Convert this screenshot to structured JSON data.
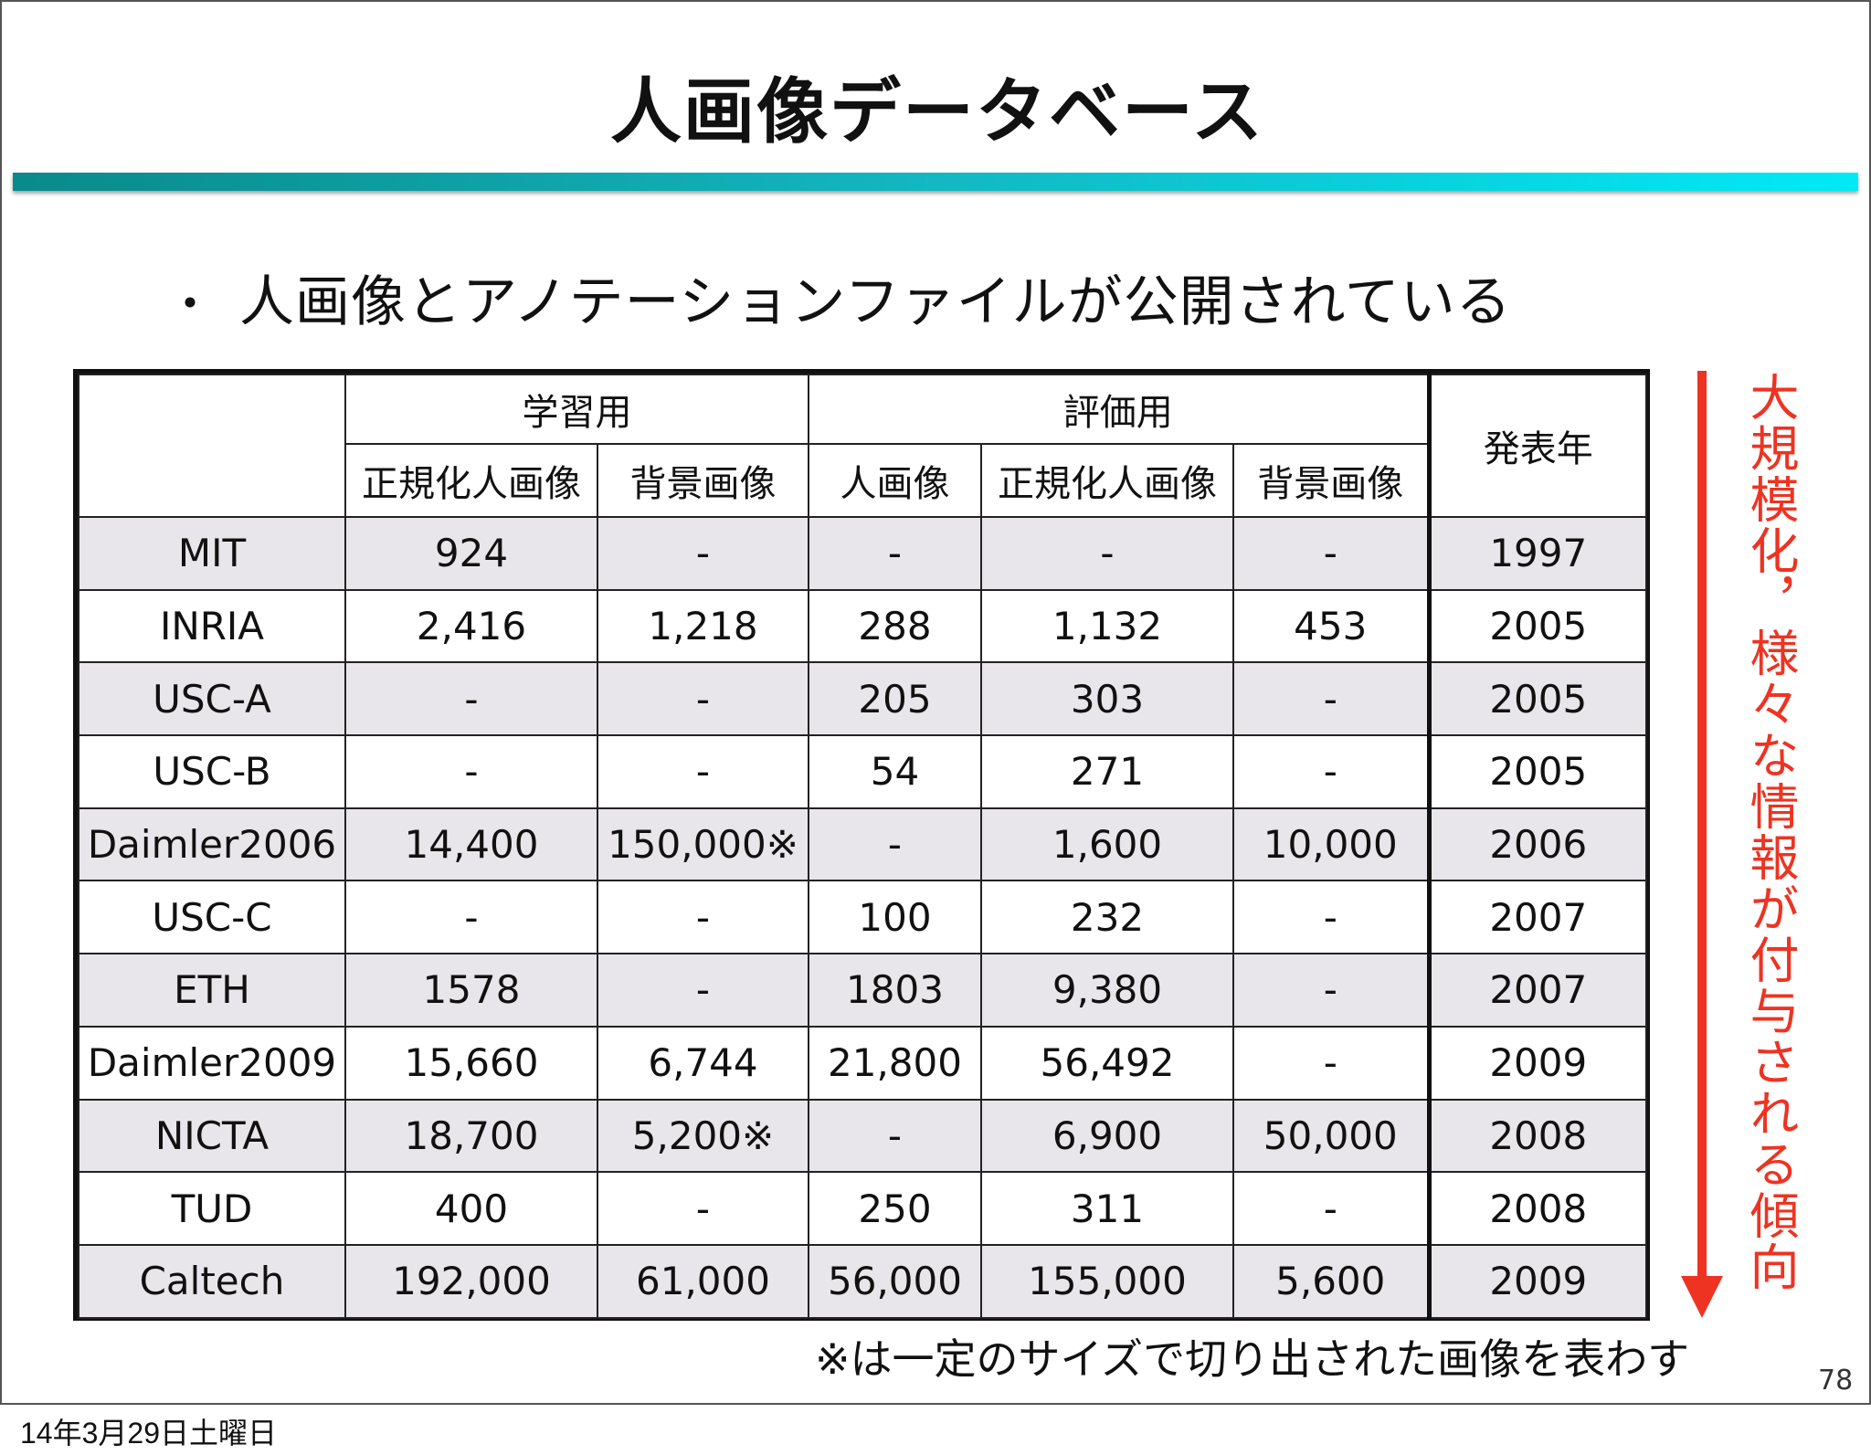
{
  "slide": {
    "title": "人画像データベース",
    "bullet_marker": "・",
    "bullet_text": "人画像とアノテーションファイルが公開されている",
    "side_label": "大規模化，様々な情報が付与される傾向",
    "note": "※は一定のサイズで切り出された画像を表わす",
    "page_number": "78",
    "footer_date": "14年3月29日土曜日",
    "colors": {
      "title_bar_start": "#0a8a8a",
      "title_bar_end": "#00eaf6",
      "accent_red": "#ee3322",
      "row_shade": "#e8e6ea"
    }
  },
  "table": {
    "group_headers": {
      "train": "学習用",
      "eval": "評価用",
      "year": "発表年"
    },
    "sub_headers": {
      "train_norm": "正規化人画像",
      "train_bg": "背景画像",
      "eval_person": "人画像",
      "eval_norm": "正規化人画像",
      "eval_bg": "背景画像"
    },
    "rows": [
      [
        "MIT",
        "924",
        "-",
        "-",
        "-",
        "-",
        "1997"
      ],
      [
        "INRIA",
        "2,416",
        "1,218",
        "288",
        "1,132",
        "453",
        "2005"
      ],
      [
        "USC-A",
        "-",
        "-",
        "205",
        "303",
        "-",
        "2005"
      ],
      [
        "USC-B",
        "-",
        "-",
        "54",
        "271",
        "-",
        "2005"
      ],
      [
        "Daimler2006",
        "14,400",
        "150,000※",
        "-",
        "1,600",
        "10,000",
        "2006"
      ],
      [
        "USC-C",
        "-",
        "-",
        "100",
        "232",
        "-",
        "2007"
      ],
      [
        "ETH",
        "1578",
        "-",
        "1803",
        "9,380",
        "-",
        "2007"
      ],
      [
        "Daimler2009",
        "15,660",
        "6,744",
        "21,800",
        "56,492",
        "-",
        "2009"
      ],
      [
        "NICTA",
        "18,700",
        "5,200※",
        "-",
        "6,900",
        "50,000",
        "2008"
      ],
      [
        "TUD",
        "400",
        "-",
        "250",
        "311",
        "-",
        "2008"
      ],
      [
        "Caltech",
        "192,000",
        "61,000",
        "56,000",
        "155,000",
        "5,600",
        "2009"
      ]
    ]
  }
}
